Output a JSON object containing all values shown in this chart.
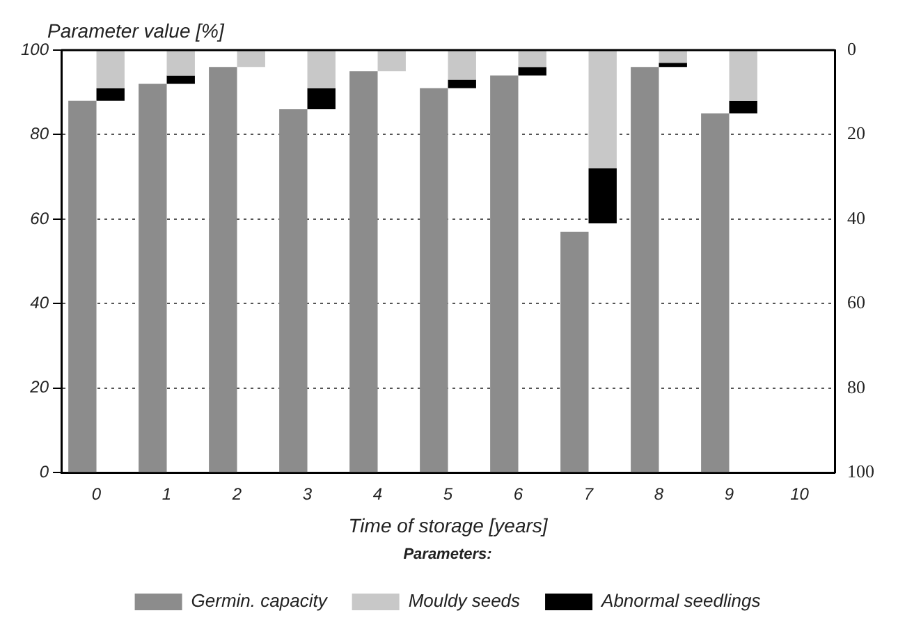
{
  "chart_data": {
    "type": "bar",
    "ylabel": "Parameter value [%]",
    "xlabel": "Time of storage [years]",
    "legend_title": "Parameters:",
    "categories": [
      "0",
      "1",
      "2",
      "3",
      "4",
      "5",
      "6",
      "7",
      "8",
      "9",
      "10"
    ],
    "series": [
      {
        "name": "Germin. capacity",
        "color": "#8c8c8c",
        "values": [
          88,
          92,
          96,
          86,
          95,
          91,
          94,
          57,
          96,
          85,
          null
        ]
      },
      {
        "name": "Mouldy seeds",
        "color": "#c8c8c8",
        "axis": "y2",
        "values": [
          9,
          6,
          4,
          9,
          5,
          7,
          4,
          28,
          3,
          12,
          null
        ]
      },
      {
        "name": "Abnormal seedlings",
        "color": "#000000",
        "axis": "y2",
        "values": [
          3,
          2,
          null,
          5,
          null,
          2,
          2,
          13,
          1,
          3,
          null
        ]
      }
    ],
    "stacked": true,
    "ylim": [
      0,
      100
    ],
    "yticks": [
      0,
      20,
      40,
      60,
      80,
      100
    ],
    "y2lim": [
      100,
      0
    ],
    "y2ticks": [
      0,
      20,
      40,
      60,
      80,
      100
    ],
    "grid": "y",
    "legend": "bottom"
  }
}
